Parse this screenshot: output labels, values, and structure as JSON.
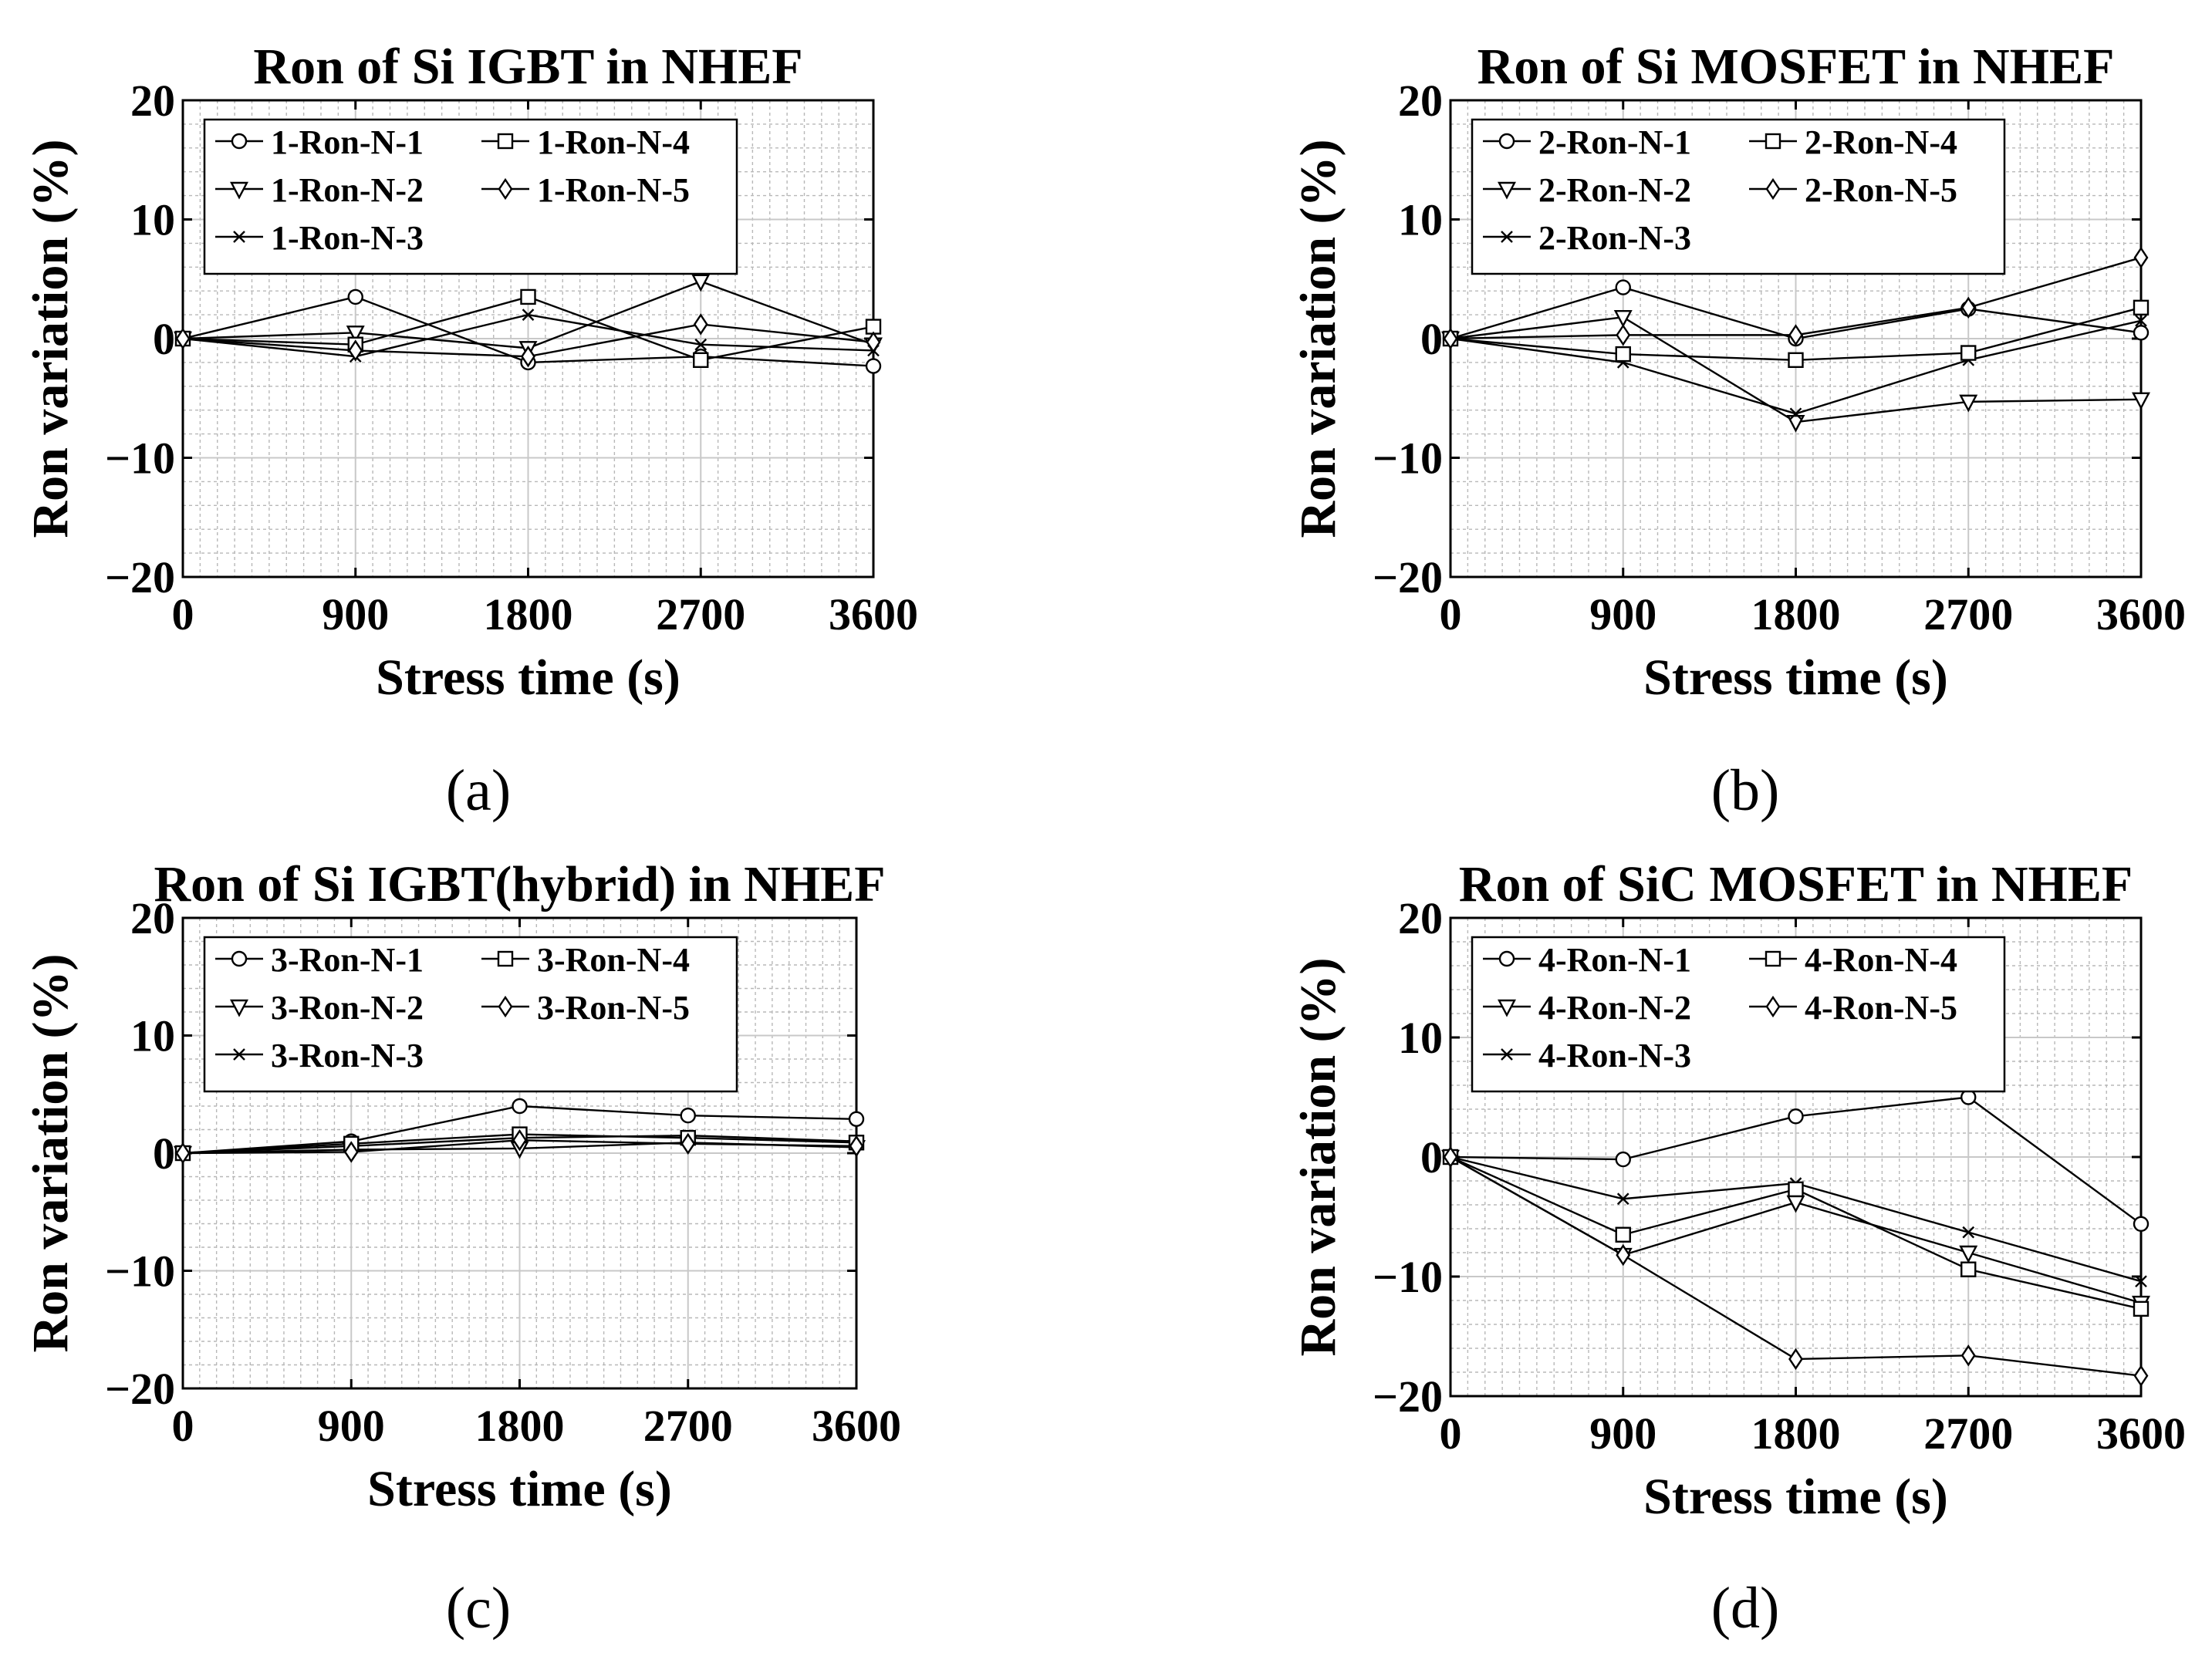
{
  "chart_data": [
    {
      "type": "line",
      "title": "Ron of Si IGBT in NHEF",
      "caption": "(a)",
      "xlabel": "Stress time (s)",
      "ylabel": "Ron variation (%)",
      "x": [
        0,
        900,
        1800,
        2700,
        3600
      ],
      "x_ticks": [
        "0",
        "900",
        "1800",
        "2700",
        "3600"
      ],
      "y_ticks": [
        "20",
        "10",
        "0",
        "−10",
        "−20"
      ],
      "xlim": [
        0,
        3600
      ],
      "ylim": [
        -20,
        20
      ],
      "grid": "on",
      "legend_location": "top-left",
      "series": [
        {
          "name": "1-Ron-N-1",
          "marker": "circle",
          "values": [
            0,
            3.5,
            -2.0,
            -1.5,
            -2.3
          ]
        },
        {
          "name": "1-Ron-N-2",
          "marker": "triangle-down",
          "values": [
            0,
            0.5,
            -0.8,
            4.8,
            -0.5
          ]
        },
        {
          "name": "1-Ron-N-3",
          "marker": "x",
          "values": [
            0,
            -1.5,
            2.0,
            -0.5,
            -1.0
          ]
        },
        {
          "name": "1-Ron-N-4",
          "marker": "square",
          "values": [
            0,
            -0.5,
            3.5,
            -1.8,
            1.0
          ]
        },
        {
          "name": "1-Ron-N-5",
          "marker": "diamond",
          "values": [
            0,
            -1.0,
            -1.5,
            1.2,
            -0.3
          ]
        }
      ]
    },
    {
      "type": "line",
      "title": "Ron of Si MOSFET in NHEF",
      "caption": "(b)",
      "xlabel": "Stress time (s)",
      "ylabel": "Ron variation (%)",
      "x": [
        0,
        900,
        1800,
        2700,
        3600
      ],
      "x_ticks": [
        "0",
        "900",
        "1800",
        "2700",
        "3600"
      ],
      "y_ticks": [
        "20",
        "10",
        "0",
        "−10",
        "−20"
      ],
      "xlim": [
        0,
        3600
      ],
      "ylim": [
        -20,
        20
      ],
      "grid": "on",
      "legend_location": "top-left",
      "series": [
        {
          "name": "2-Ron-N-1",
          "marker": "circle",
          "values": [
            0,
            4.3,
            0.0,
            2.5,
            0.5
          ]
        },
        {
          "name": "2-Ron-N-2",
          "marker": "triangle-down",
          "values": [
            0,
            1.8,
            -7.0,
            -5.3,
            -5.1
          ]
        },
        {
          "name": "2-Ron-N-3",
          "marker": "x",
          "values": [
            0,
            -2.0,
            -6.3,
            -1.8,
            1.5
          ]
        },
        {
          "name": "2-Ron-N-4",
          "marker": "square",
          "values": [
            0,
            -1.3,
            -1.8,
            -1.2,
            2.6
          ]
        },
        {
          "name": "2-Ron-N-5",
          "marker": "diamond",
          "values": [
            0,
            0.3,
            0.3,
            2.6,
            6.8
          ]
        }
      ]
    },
    {
      "type": "line",
      "title": "Ron of Si IGBT(hybrid) in NHEF",
      "caption": "(c)",
      "xlabel": "Stress time (s)",
      "ylabel": "Ron variation (%)",
      "x": [
        0,
        900,
        1800,
        2700,
        3600
      ],
      "x_ticks": [
        "0",
        "900",
        "1800",
        "2700",
        "3600"
      ],
      "y_ticks": [
        "20",
        "10",
        "0",
        "−10",
        "−20"
      ],
      "xlim": [
        0,
        3600
      ],
      "ylim": [
        -20,
        20
      ],
      "grid": "on",
      "legend_location": "top-left",
      "series": [
        {
          "name": "3-Ron-N-1",
          "marker": "circle",
          "values": [
            0,
            1.0,
            4.0,
            3.2,
            2.9
          ]
        },
        {
          "name": "3-Ron-N-2",
          "marker": "triangle-down",
          "values": [
            0,
            0.3,
            0.4,
            0.9,
            0.5
          ]
        },
        {
          "name": "3-Ron-N-3",
          "marker": "x",
          "values": [
            0,
            0.6,
            1.3,
            1.5,
            1.0
          ]
        },
        {
          "name": "3-Ron-N-4",
          "marker": "square",
          "values": [
            0,
            0.8,
            1.6,
            1.3,
            0.9
          ]
        },
        {
          "name": "3-Ron-N-5",
          "marker": "diamond",
          "values": [
            0,
            0.1,
            1.1,
            0.8,
            0.6
          ]
        }
      ]
    },
    {
      "type": "line",
      "title": "Ron of SiC MOSFET in NHEF",
      "caption": "(d)",
      "xlabel": "Stress time (s)",
      "ylabel": "Ron variation (%)",
      "x": [
        0,
        900,
        1800,
        2700,
        3600
      ],
      "x_ticks": [
        "0",
        "900",
        "1800",
        "2700",
        "3600"
      ],
      "y_ticks": [
        "20",
        "10",
        "0",
        "−10",
        "−20"
      ],
      "xlim": [
        0,
        3600
      ],
      "ylim": [
        -20,
        20
      ],
      "grid": "on",
      "legend_location": "top-left",
      "series": [
        {
          "name": "4-Ron-N-1",
          "marker": "circle",
          "values": [
            0,
            -0.2,
            3.4,
            5.0,
            -5.6
          ]
        },
        {
          "name": "4-Ron-N-2",
          "marker": "triangle-down",
          "values": [
            0,
            -8.2,
            -3.8,
            -8.0,
            -12.2
          ]
        },
        {
          "name": "4-Ron-N-3",
          "marker": "x",
          "values": [
            0,
            -3.5,
            -2.2,
            -6.3,
            -10.4
          ]
        },
        {
          "name": "4-Ron-N-4",
          "marker": "square",
          "values": [
            0,
            -6.5,
            -2.7,
            -9.4,
            -12.7
          ]
        },
        {
          "name": "4-Ron-N-5",
          "marker": "diamond",
          "values": [
            0,
            -8.2,
            -16.9,
            -16.6,
            -18.3
          ]
        }
      ]
    }
  ]
}
